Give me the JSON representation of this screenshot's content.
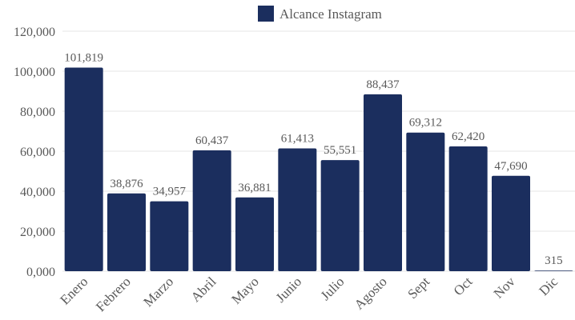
{
  "chart_data": {
    "type": "bar",
    "categories": [
      "Enero",
      "Febrero",
      "Marzo",
      "Abril",
      "Mayo",
      "Junio",
      "Julio",
      "Agosto",
      "Sept",
      "Oct",
      "Nov",
      "Dic"
    ],
    "series": [
      {
        "name": "Alcance Instagram",
        "color": "#1b2e5e",
        "values": [
          101819,
          38876,
          34957,
          60437,
          36881,
          61413,
          55551,
          88437,
          69312,
          62420,
          47690,
          315
        ],
        "data_labels": [
          "101,819",
          "38,876",
          "34,957",
          "60,437",
          "36,881",
          "61,413",
          "55,551",
          "88,437",
          "69,312",
          "62,420",
          "47,690",
          "315"
        ]
      }
    ],
    "ylim": [
      0,
      120000
    ],
    "yticks": [
      0,
      20000,
      40000,
      60000,
      80000,
      100000,
      120000
    ],
    "ytick_labels": [
      "0,000",
      "20,000",
      "40,000",
      "60,000",
      "80,000",
      "100,000",
      "120,000"
    ],
    "grid": true,
    "legend_position": "top-center"
  }
}
